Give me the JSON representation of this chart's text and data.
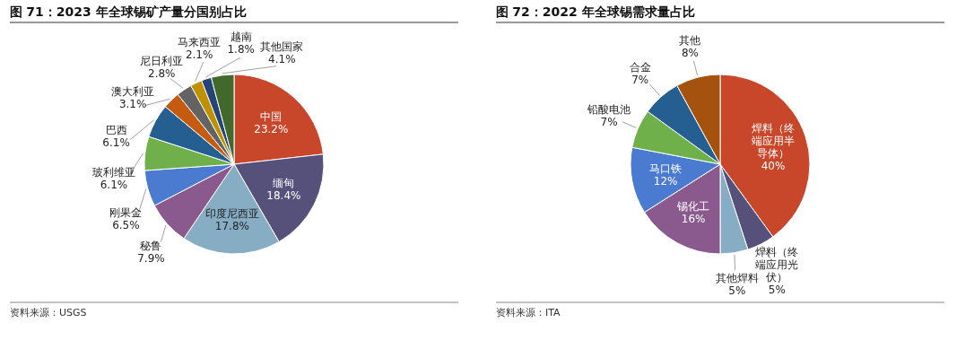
{
  "chart_data": [
    {
      "type": "pie",
      "title": "图 71：2023 年全球锡矿产量分国别占比",
      "categories": [
        "中国",
        "缅甸",
        "印度尼西亚",
        "秘鲁",
        "刚果金",
        "玻利维亚",
        "巴西",
        "澳大利亚",
        "尼日利亚",
        "马来西亚",
        "越南",
        "其他国家"
      ],
      "values": [
        23.2,
        18.4,
        17.8,
        7.9,
        6.5,
        6.1,
        6.1,
        3.1,
        2.8,
        2.1,
        1.8,
        4.1
      ],
      "value_labels": [
        "23.2%",
        "18.4%",
        "17.8%",
        "7.9%",
        "6.5%",
        "6.1%",
        "6.1%",
        "3.1%",
        "2.8%",
        "2.1%",
        "1.8%",
        "4.1%"
      ],
      "colors": [
        "#c8472b",
        "#56517a",
        "#87adc5",
        "#8a5a8e",
        "#4a7bd0",
        "#6fb04b",
        "#255e91",
        "#c55a11",
        "#636363",
        "#bf9000",
        "#264478",
        "#43682b"
      ],
      "annotations": [
        "资料来源：USGS"
      ]
    },
    {
      "type": "pie",
      "title": "图 72：2022 年全球锡需求量占比",
      "categories": [
        "焊料（终端应用半导体）",
        "焊料（终端应用光伏）",
        "其他焊料",
        "锡化工",
        "马口铁",
        "铅酸电池",
        "合金",
        "其他"
      ],
      "values": [
        40,
        5,
        5,
        16,
        12,
        7,
        7,
        8
      ],
      "value_labels": [
        "40%",
        "5%",
        "5%",
        "16%",
        "12%",
        "7%",
        "7%",
        "8%"
      ],
      "colors": [
        "#c8472b",
        "#56517a",
        "#87adc5",
        "#8a5a8e",
        "#4a7bd0",
        "#6fb04b",
        "#255e91",
        "#a5520f"
      ],
      "annotations": [
        "资料来源：ITA"
      ]
    }
  ]
}
